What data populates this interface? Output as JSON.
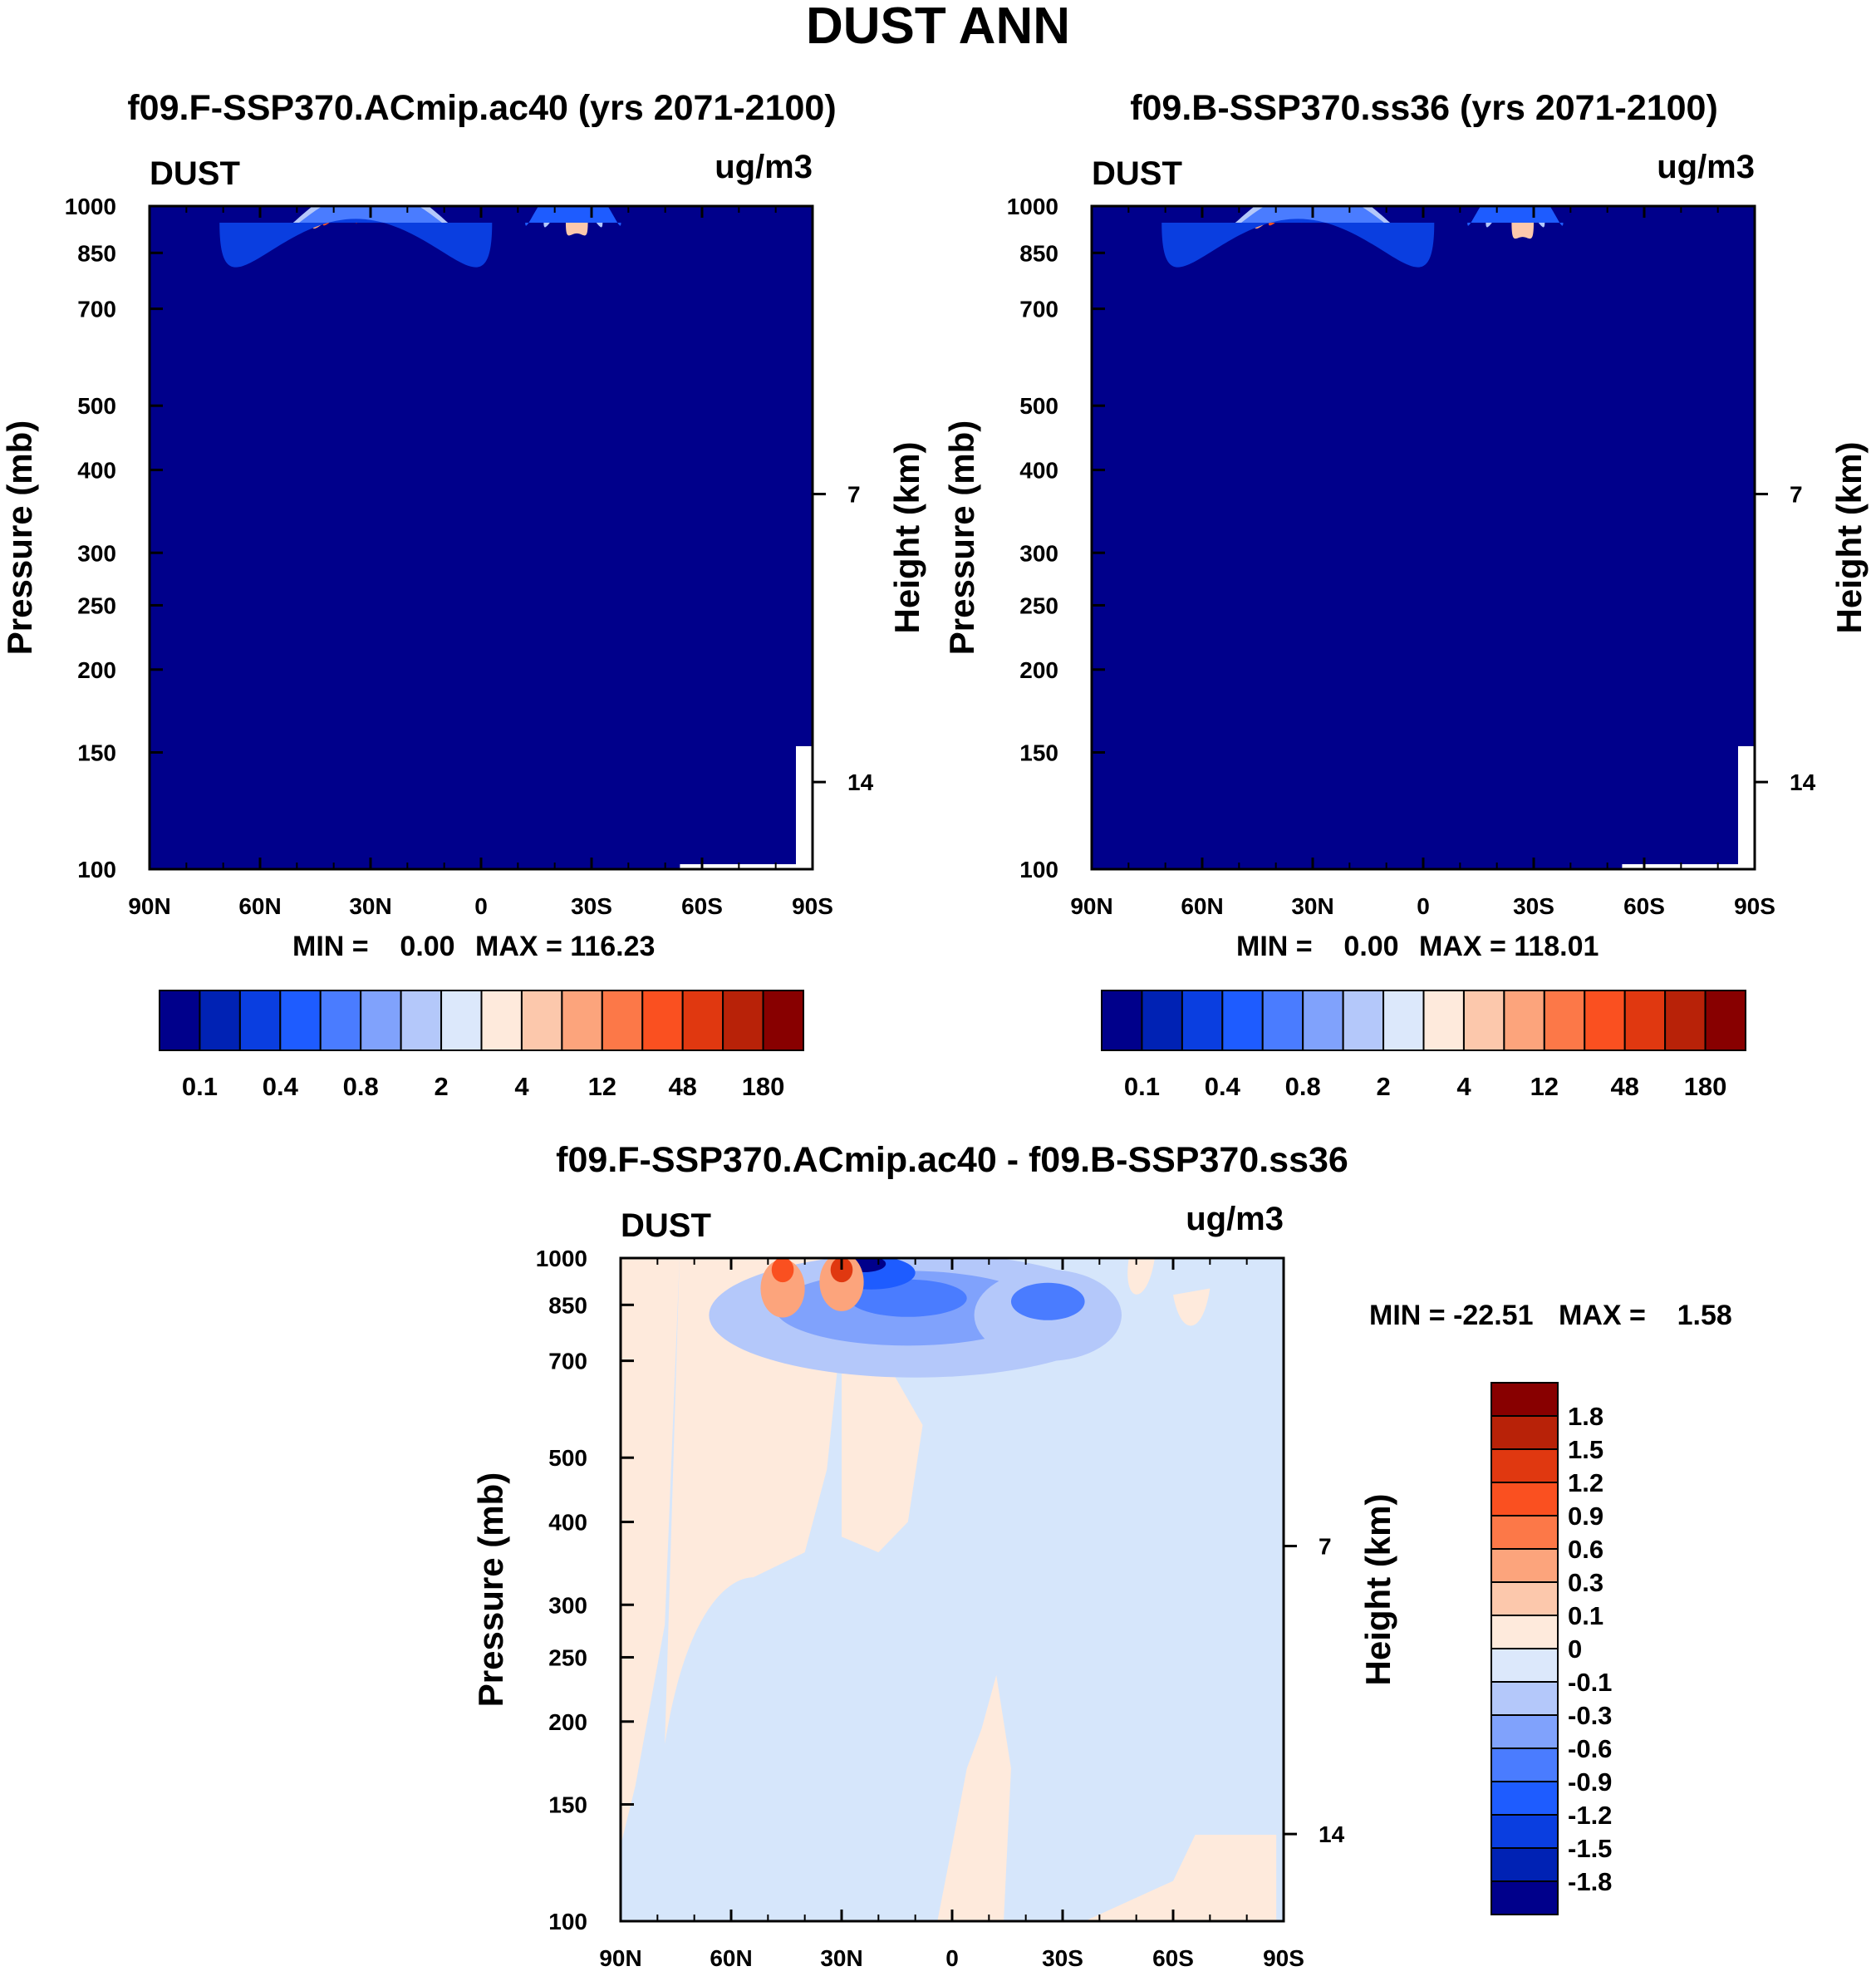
{
  "title": "DUST ANN",
  "chart_data": [
    {
      "type": "heatmap",
      "id": "panel-test",
      "title": "f09.F-SSP370.ACmip.ac40 (yrs 2071-2100)",
      "variable": "DUST",
      "units": "ug/m3",
      "ylabel": "Pressure (mb)",
      "y2label": "Height (km)",
      "xticks": [
        "90N",
        "60N",
        "30N",
        "0",
        "30S",
        "60S",
        "90S"
      ],
      "yticks": [
        100,
        150,
        200,
        250,
        300,
        400,
        500,
        700,
        850,
        1000
      ],
      "y2ticks": [
        14,
        7
      ],
      "xlim": [
        90,
        -90
      ],
      "ylim": [
        1000,
        100
      ],
      "min_label": "MIN =    0.00",
      "max_label": "MAX = 116.23",
      "contour_levels": [
        "0.1",
        "0.2",
        "0.4",
        "0.6",
        "0.8",
        "1",
        "2",
        "3",
        "4",
        "8",
        "12",
        "24",
        "48",
        "96",
        "180"
      ],
      "colorbar_labels": [
        "0.1",
        "0.4",
        "0.8",
        "2",
        "4",
        "12",
        "48",
        "180"
      ],
      "field": [
        {
          "lat": 28,
          "p": 870,
          "level": 13,
          "sx": 6,
          "sy": 80
        },
        {
          "lat": 32,
          "p": 790,
          "level": 11,
          "sx": 11,
          "sy": 160
        },
        {
          "lat": 30,
          "p": 700,
          "level": 9,
          "sx": 16,
          "sy": 260
        },
        {
          "lat": 30,
          "p": 640,
          "level": 7,
          "sx": 21,
          "sy": 360
        },
        {
          "lat": 30,
          "p": 560,
          "level": 5,
          "sx": 26,
          "sy": 460
        },
        {
          "lat": 30,
          "p": 470,
          "level": 3,
          "sx": 30,
          "sy": 560
        },
        {
          "lat": 34,
          "p": 380,
          "level": 1,
          "sx": 37,
          "sy": 640
        },
        {
          "lat": -26,
          "p": 840,
          "level": 8,
          "sx": 3,
          "sy": 55
        },
        {
          "lat": -25,
          "p": 750,
          "level": 5,
          "sx": 8,
          "sy": 200
        },
        {
          "lat": -25,
          "p": 640,
          "level": 2,
          "sx": 13,
          "sy": 380
        }
      ]
    },
    {
      "type": "heatmap",
      "id": "panel-control",
      "title": "f09.B-SSP370.ss36 (yrs 2071-2100)",
      "variable": "DUST",
      "units": "ug/m3",
      "ylabel": "Pressure (mb)",
      "y2label": "Height (km)",
      "xticks": [
        "90N",
        "60N",
        "30N",
        "0",
        "30S",
        "60S",
        "90S"
      ],
      "yticks": [
        100,
        150,
        200,
        250,
        300,
        400,
        500,
        700,
        850,
        1000
      ],
      "y2ticks": [
        14,
        7
      ],
      "xlim": [
        90,
        -90
      ],
      "ylim": [
        1000,
        100
      ],
      "min_label": "MIN =    0.00",
      "max_label": "MAX = 118.01",
      "contour_levels": [
        "0.1",
        "0.2",
        "0.4",
        "0.6",
        "0.8",
        "1",
        "2",
        "3",
        "4",
        "8",
        "12",
        "24",
        "48",
        "96",
        "180"
      ],
      "colorbar_labels": [
        "0.1",
        "0.4",
        "0.8",
        "2",
        "4",
        "12",
        "48",
        "180"
      ],
      "field": [
        {
          "lat": 27,
          "p": 875,
          "level": 13,
          "sx": 6,
          "sy": 80
        },
        {
          "lat": 31,
          "p": 790,
          "level": 11,
          "sx": 11,
          "sy": 160
        },
        {
          "lat": 30,
          "p": 700,
          "level": 9,
          "sx": 16,
          "sy": 260
        },
        {
          "lat": 30,
          "p": 640,
          "level": 7,
          "sx": 21,
          "sy": 360
        },
        {
          "lat": 30,
          "p": 560,
          "level": 5,
          "sx": 26,
          "sy": 460
        },
        {
          "lat": 30,
          "p": 470,
          "level": 3,
          "sx": 30,
          "sy": 560
        },
        {
          "lat": 34,
          "p": 380,
          "level": 1,
          "sx": 37,
          "sy": 640
        },
        {
          "lat": -27,
          "p": 830,
          "level": 8,
          "sx": 3,
          "sy": 55
        },
        {
          "lat": -25,
          "p": 750,
          "level": 5,
          "sx": 8,
          "sy": 200
        },
        {
          "lat": -25,
          "p": 640,
          "level": 2,
          "sx": 13,
          "sy": 380
        }
      ]
    },
    {
      "type": "heatmap",
      "id": "panel-diff",
      "title": "f09.F-SSP370.ACmip.ac40 - f09.B-SSP370.ss36",
      "variable": "DUST",
      "units": "ug/m3",
      "ylabel": "Pressure (mb)",
      "y2label": "Height (km)",
      "xticks": [
        "90N",
        "60N",
        "30N",
        "0",
        "30S",
        "60S",
        "90S"
      ],
      "yticks": [
        100,
        150,
        200,
        250,
        300,
        400,
        500,
        700,
        850,
        1000
      ],
      "y2ticks": [
        14,
        7
      ],
      "xlim": [
        90,
        -90
      ],
      "ylim": [
        1000,
        100
      ],
      "min_label": "MIN = -22.51",
      "max_label": "MAX =    1.58",
      "contour_levels": [
        "1.8",
        "1.5",
        "1.2",
        "0.9",
        "0.6",
        "0.3",
        "0.1",
        "0",
        "-0.1",
        "-0.3",
        "-0.6",
        "-0.9",
        "-1.2",
        "-1.5",
        "-1.8"
      ],
      "colorbar_labels": [
        "1.8",
        "1.5",
        "1.2",
        "0.9",
        "0.6",
        "0.3",
        "0.1",
        "0",
        "-0.1",
        "-0.3",
        "-0.6",
        "-0.9",
        "-1.2",
        "-1.5",
        "-1.8"
      ]
    }
  ],
  "colors": {
    "ramp": [
      "#00008b",
      "#0022b4",
      "#0a3ee0",
      "#1e5cff",
      "#4a7cff",
      "#80a2fc",
      "#b4c8fa",
      "#dce8fb",
      "#feeadc",
      "#fcc8ac",
      "#fca47c",
      "#fc7848",
      "#fa5020",
      "#e03810",
      "#b82208",
      "#880000"
    ],
    "diff_positive": "#feeadc",
    "diff_negative": "#d6e6fb"
  }
}
